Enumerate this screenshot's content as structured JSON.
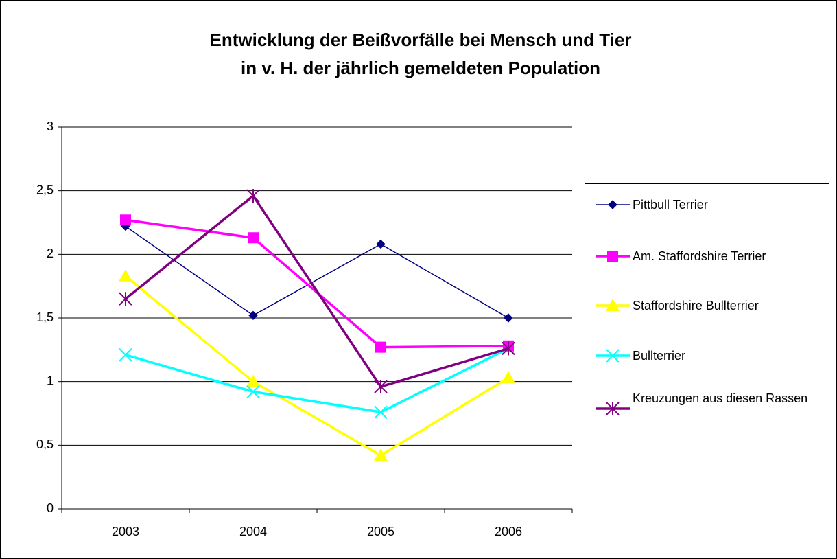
{
  "chart_data": {
    "type": "line",
    "title": [
      "Entwicklung der Beißvorfälle bei Mensch und Tier",
      "in v. H. der jährlich gemeldeten Population"
    ],
    "categories": [
      "2003",
      "2004",
      "2005",
      "2006"
    ],
    "series": [
      {
        "name": "Pittbull Terrier",
        "color": "#000080",
        "marker": "diamond",
        "values": [
          2.22,
          1.52,
          2.08,
          1.5
        ]
      },
      {
        "name": "Am. Staffordshire Terrier",
        "color": "#ff00ff",
        "marker": "square",
        "values": [
          2.27,
          2.13,
          1.27,
          1.28
        ]
      },
      {
        "name": "Staffordshire Bullterrier",
        "color": "#ffff00",
        "marker": "triangle",
        "values": [
          1.83,
          1.0,
          0.42,
          1.03
        ]
      },
      {
        "name": "Bullterrier",
        "color": "#00ffff",
        "marker": "x",
        "values": [
          1.21,
          0.92,
          0.76,
          1.26
        ]
      },
      {
        "name": "Kreuzungen aus diesen Rassen",
        "color": "#800080",
        "marker": "asterisk",
        "values": [
          1.65,
          2.46,
          0.96,
          1.26
        ]
      }
    ],
    "ylim": [
      0,
      3
    ],
    "yticks": [
      0,
      {
        "value": 0.5,
        "label": "0,5"
      },
      1,
      {
        "value": 1.5,
        "label": "1,5"
      },
      2,
      {
        "value": 2.5,
        "label": "2,5"
      },
      3
    ],
    "grid": true,
    "legend": "right"
  }
}
